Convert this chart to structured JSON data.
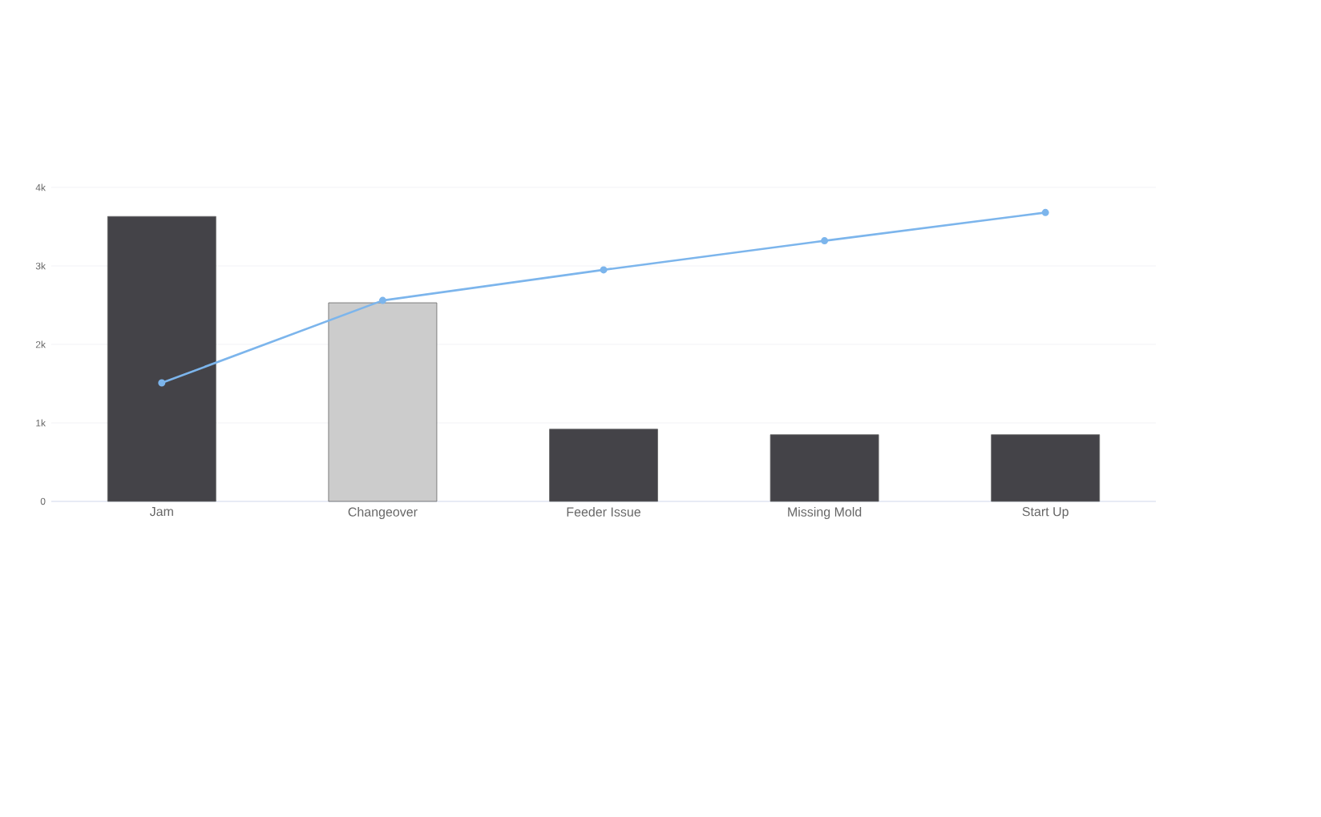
{
  "chart_data": {
    "type": "bar",
    "categories": [
      "Jam",
      "Changeover",
      "Feeder Issue",
      "Missing Mold",
      "Start Up"
    ],
    "series": [
      {
        "colors": [
          "#444348",
          "#cccccc",
          "#444348",
          "#444348",
          "#444348"
        ],
        "values": [
          3630,
          2530,
          920,
          850,
          850
        ]
      },
      {
        "type": "line",
        "color": "#7cb5ec",
        "marker": "circle",
        "values": [
          1510,
          2560,
          2950,
          3320,
          3680
        ]
      }
    ],
    "ylim": [
      0,
      4000
    ],
    "yticks": [
      0,
      {
        "value": 1000,
        "label": "1k"
      },
      {
        "value": 2000,
        "label": "2k"
      },
      {
        "value": 3000,
        "label": "3k"
      },
      {
        "value": 4000,
        "label": "4k"
      }
    ],
    "grid": "y"
  }
}
